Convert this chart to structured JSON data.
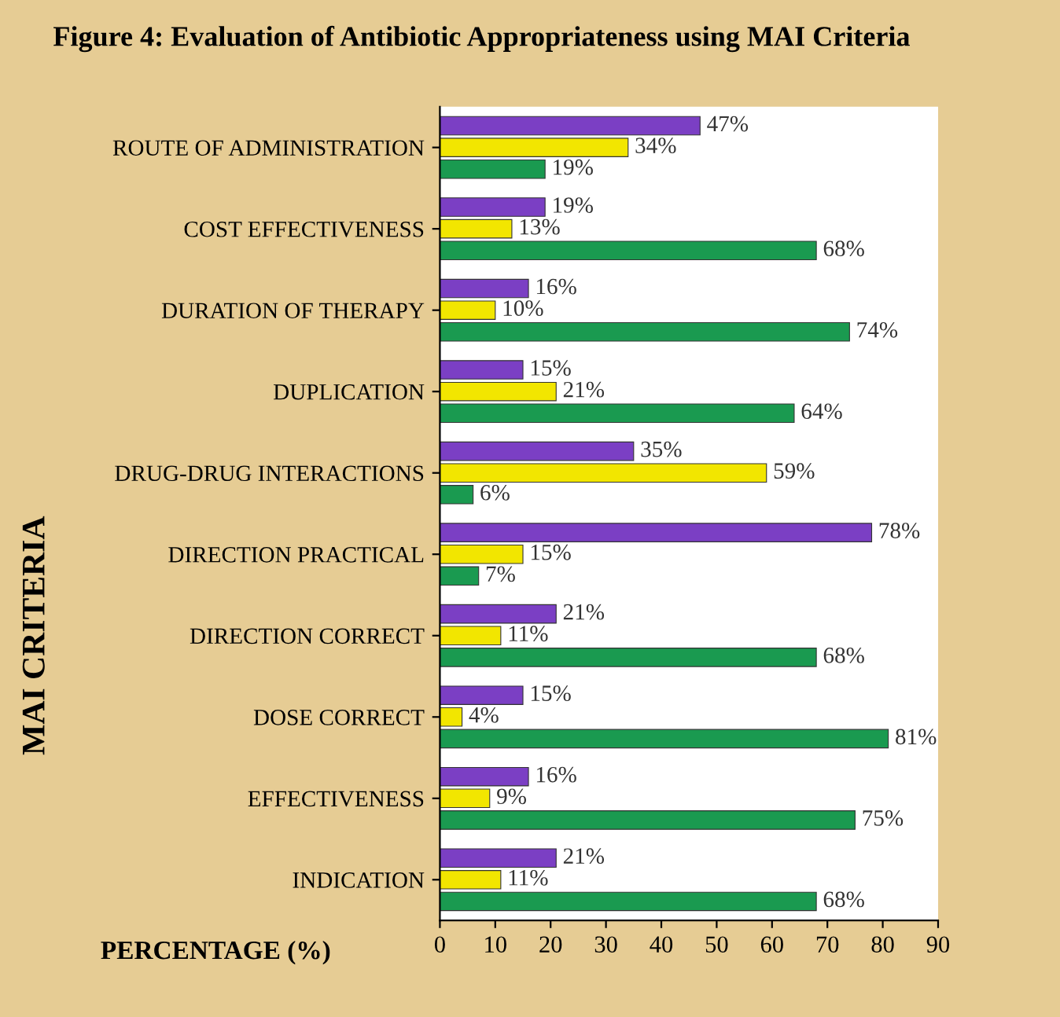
{
  "chart_data": {
    "type": "bar",
    "orientation": "horizontal",
    "title": "Figure 4: Evaluation of Antibiotic Appropriateness using MAI Criteria",
    "xlabel": "PERCENTAGE (%)",
    "ylabel": "MAI CRITERIA",
    "categories": [
      "ROUTE OF ADMINISTRATION",
      "COST EFFECTIVENESS",
      "DURATION OF THERAPY",
      "DUPLICATION",
      "DRUG-DRUG INTERACTIONS",
      "DIRECTION PRACTICAL",
      "DIRECTION CORRECT",
      "DOSE CORRECT",
      "EFFECTIVENESS",
      "INDICATION"
    ],
    "series": [
      {
        "color": "#7b3fc4",
        "values": [
          47,
          19,
          16,
          15,
          35,
          78,
          21,
          15,
          16,
          21
        ],
        "value_labels": [
          "47%",
          "19%",
          "16%",
          "15%",
          "35%",
          "78%",
          "21%",
          "15%",
          "16%",
          "21%"
        ]
      },
      {
        "color": "#f2e600",
        "values": [
          34,
          13,
          10,
          21,
          59,
          15,
          11,
          4,
          9,
          11
        ],
        "value_labels": [
          "34%",
          "13%",
          "10%",
          "21%",
          "59%",
          "15%",
          "11%",
          "4%",
          "9%",
          "11%"
        ]
      },
      {
        "color": "#1a9a50",
        "values": [
          19,
          68,
          74,
          64,
          6,
          7,
          68,
          81,
          75,
          68
        ],
        "value_labels": [
          "19%",
          "68%",
          "74%",
          "64%",
          "6%",
          "7%",
          "68%",
          "81%",
          "75%",
          "68%"
        ]
      }
    ],
    "xlim": [
      0,
      90
    ],
    "xticks": [
      0,
      10,
      20,
      30,
      40,
      50,
      60,
      70,
      80,
      90
    ],
    "grid": false,
    "legend": false
  }
}
